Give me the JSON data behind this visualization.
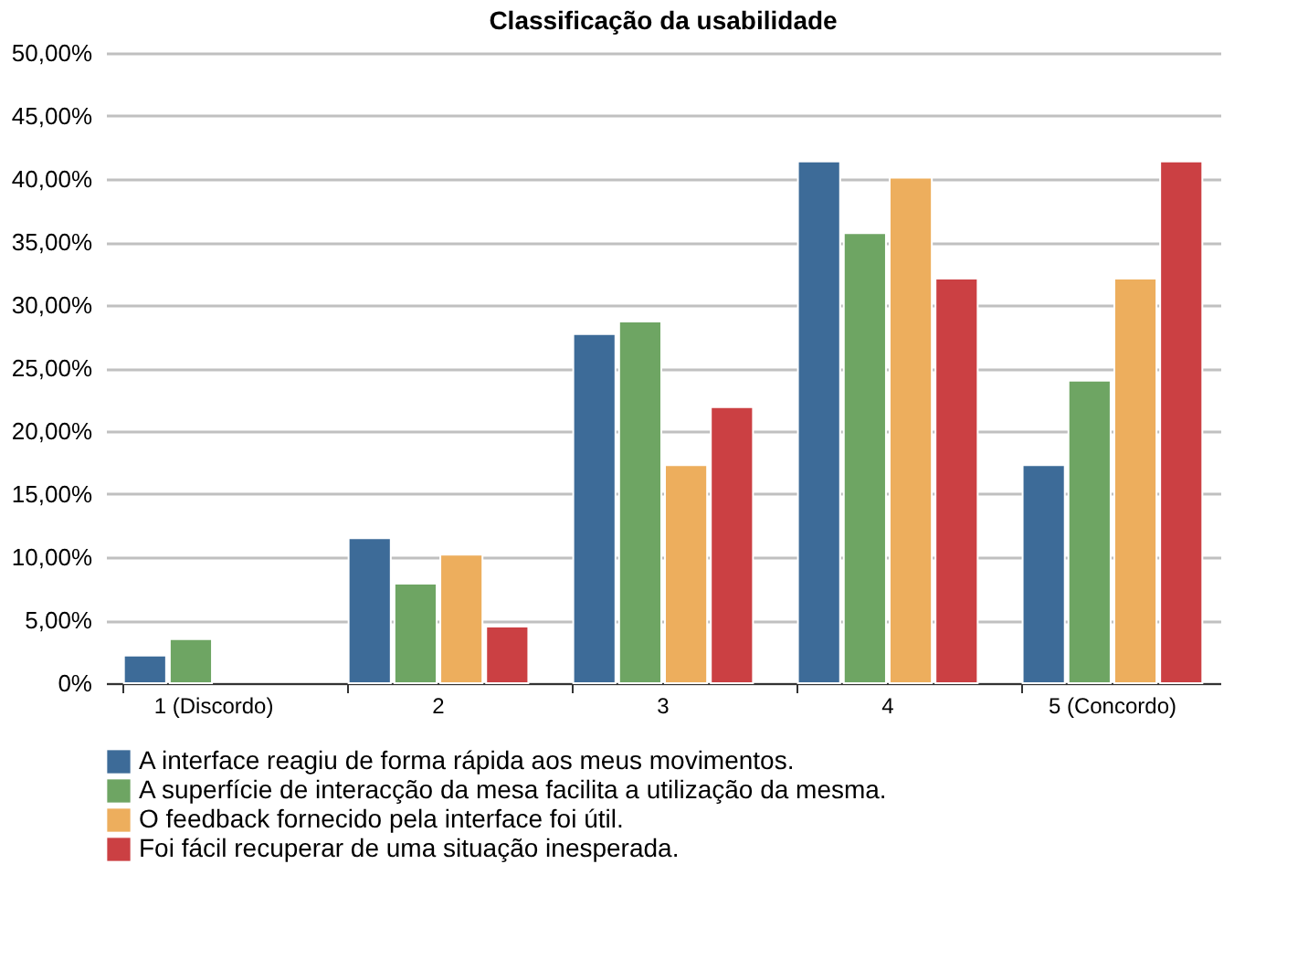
{
  "chart_data": {
    "type": "bar",
    "title": "Classificação da usabilidade",
    "categories": [
      "1 (Discordo)",
      "2",
      "3",
      "4",
      "5 (Concordo)"
    ],
    "series": [
      {
        "name": "A interface reagiu de forma rápida aos meus movimentos.",
        "color": "#3d6b98",
        "values": [
          2.2,
          11.5,
          27.7,
          41.4,
          17.3
        ]
      },
      {
        "name": "A superfície de interacção da mesa facilita a utilização da mesma.",
        "color": "#6ea563",
        "values": [
          3.5,
          7.9,
          28.7,
          35.7,
          24.0
        ]
      },
      {
        "name": "O feedback fornecido pela interface foi útil.",
        "color": "#edae5d",
        "values": [
          null,
          10.2,
          17.3,
          40.1,
          32.1
        ]
      },
      {
        "name": "Foi fácil recuperar de uma situação inesperada.",
        "color": "#cb4043",
        "values": [
          null,
          4.5,
          21.9,
          32.1,
          41.4
        ]
      }
    ],
    "ylim": [
      0,
      50
    ],
    "yticks": [
      {
        "value": 0,
        "label": "0%"
      },
      {
        "value": 5,
        "label": "5,00%"
      },
      {
        "value": 10,
        "label": "10,00%"
      },
      {
        "value": 15,
        "label": "15,00%"
      },
      {
        "value": 20,
        "label": "20,00%"
      },
      {
        "value": 25,
        "label": "25,00%"
      },
      {
        "value": 30,
        "label": "30,00%"
      },
      {
        "value": 35,
        "label": "35,00%"
      },
      {
        "value": 40,
        "label": "40,00%"
      },
      {
        "value": 45,
        "label": "45,00%"
      },
      {
        "value": 50,
        "label": "50,00%"
      }
    ],
    "grid": "y",
    "legend": "bottom"
  }
}
